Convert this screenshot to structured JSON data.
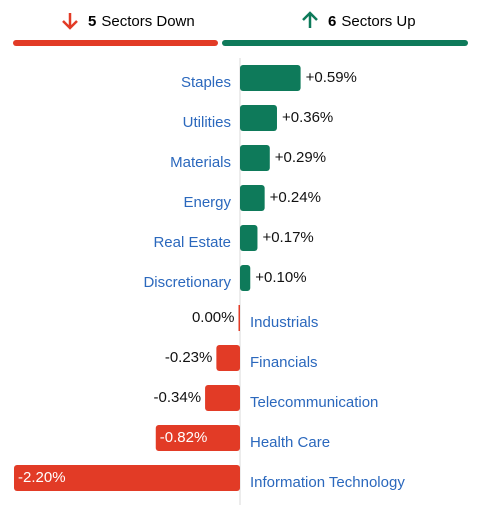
{
  "chart_data": {
    "type": "bar",
    "down_count": 5,
    "down_label": "Sectors Down",
    "up_count": 6,
    "up_label": "Sectors Up",
    "categories": [
      "Staples",
      "Utilities",
      "Materials",
      "Energy",
      "Real Estate",
      "Discretionary",
      "Industrials",
      "Financials",
      "Telecommunication",
      "Health Care",
      "Information Technology"
    ],
    "values": [
      0.59,
      0.36,
      0.29,
      0.24,
      0.17,
      0.1,
      0.0,
      -0.23,
      -0.34,
      -0.82,
      -2.2
    ],
    "value_labels": [
      "+0.59%",
      "+0.36%",
      "+0.29%",
      "+0.24%",
      "+0.17%",
      "+0.10%",
      "0.00%",
      "-0.23%",
      "-0.34%",
      "-0.82%",
      "-2.20%"
    ],
    "colors": {
      "up": "#0e7a5a",
      "down": "#e23b26"
    }
  }
}
